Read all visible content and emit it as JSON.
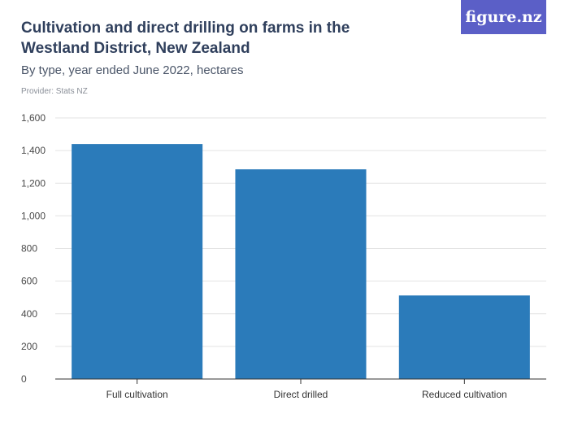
{
  "header": {
    "title": "Cultivation and direct drilling on farms in the Westland District, New Zealand",
    "subtitle": "By type, year ended June 2022, hectares",
    "provider": "Provider: Stats NZ",
    "logo_text": "figure.nz"
  },
  "colors": {
    "bar": "#2b7bba",
    "grid": "#e3e3e3",
    "axis": "#333333",
    "logo_bg": "#5b5fc7"
  },
  "chart_data": {
    "type": "bar",
    "title": "Cultivation and direct drilling on farms in the Westland District, New Zealand",
    "subtitle": "By type, year ended June 2022, hectares",
    "categories": [
      "Full cultivation",
      "Direct drilled",
      "Reduced cultivation"
    ],
    "values": [
      1440,
      1285,
      512
    ],
    "xlabel": "",
    "ylabel": "",
    "ylim": [
      0,
      1600
    ],
    "yticks": [
      0,
      200,
      400,
      600,
      800,
      1000,
      1200,
      1400,
      1600
    ],
    "ytick_labels": [
      "0",
      "200",
      "400",
      "600",
      "800",
      "1,000",
      "1,200",
      "1,400",
      "1,600"
    ],
    "grid": true,
    "legend": "none"
  }
}
